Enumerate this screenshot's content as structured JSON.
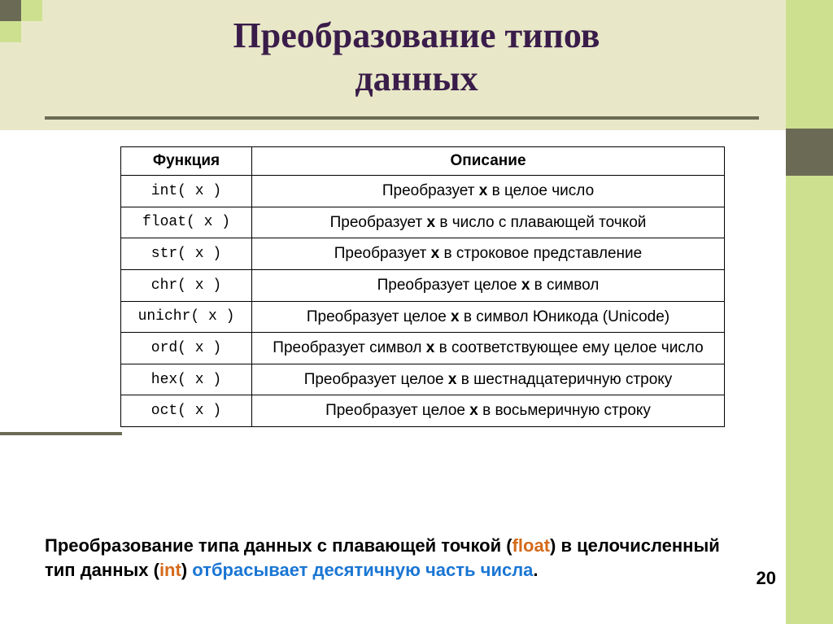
{
  "title_l1": "Преобразование типов",
  "title_l2": "данных",
  "table": {
    "head_col1": "Функция",
    "head_col2": "Описание",
    "rows": [
      {
        "fn": "int( x )",
        "desc_pre": "Преобразует ",
        "arg": "x",
        "desc_post": " в целое число"
      },
      {
        "fn": "float( x )",
        "desc_pre": "Преобразует ",
        "arg": "x",
        "desc_post": " в число с плавающей точкой"
      },
      {
        "fn": "str( x )",
        "desc_pre": "Преобразует ",
        "arg": "x",
        "desc_post": " в строковое представление"
      },
      {
        "fn": "chr( x )",
        "desc_pre": "Преобразует целое ",
        "arg": "x",
        "desc_post": " в символ"
      },
      {
        "fn": "unichr( x )",
        "desc_pre": "Преобразует целое ",
        "arg": "x",
        "desc_post": " в символ Юникода (Unicode)"
      },
      {
        "fn": "ord( x )",
        "desc_pre": "Преобразует символ ",
        "arg": "x",
        "desc_post": " в соответствующее ему целое число"
      },
      {
        "fn": "hex( x )",
        "desc_pre": "Преобразует целое ",
        "arg": "x",
        "desc_post": " в шестнадцатеричную строку"
      },
      {
        "fn": "oct( x )",
        "desc_pre": "Преобразует целое ",
        "arg": "x",
        "desc_post": " в восьмеричную строку"
      }
    ]
  },
  "footer": {
    "p1": "Преобразование типа  данных с плавающей точкой  (",
    "kw_float": "float",
    "p2": ") в целочисленный тип данных (",
    "kw_int": "int",
    "p3": ") ",
    "p4": "отбрасывает десятичную часть числа",
    "p5": "."
  },
  "page_number": "20",
  "colors": {
    "slide_bg": "#e8e8c8",
    "dark_olive": "#6b6b55",
    "lime": "#cde090",
    "title": "#3a1c4a",
    "orange": "#d46a1a",
    "blue": "#1a76d4"
  }
}
